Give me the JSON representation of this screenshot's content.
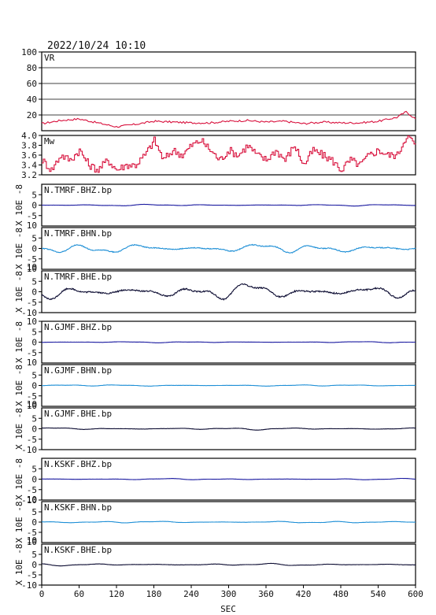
{
  "header": {
    "datetime": "2022/10/24  10:10"
  },
  "xaxis": {
    "label": "SEC",
    "ticks": [
      "0",
      "60",
      "120",
      "180",
      "240",
      "300",
      "360",
      "420",
      "480",
      "540",
      "600"
    ],
    "range": [
      0,
      600
    ]
  },
  "colors": {
    "vr_mw": "#d8103c",
    "dark_blue": "#1a1aa0",
    "light_blue": "#1e8fd6",
    "black_trace": "#0a0a30",
    "frame": "#000000",
    "grid": "#000000"
  },
  "chart_data": [
    {
      "type": "line",
      "label": "VR",
      "ylim": [
        0,
        100
      ],
      "yticks": [
        "100",
        "80",
        "60",
        "40",
        "20"
      ],
      "color": "#d8103c",
      "grid": true,
      "x": [
        0,
        30,
        60,
        90,
        120,
        150,
        180,
        210,
        240,
        270,
        300,
        330,
        360,
        390,
        420,
        450,
        480,
        510,
        540,
        570,
        585,
        600
      ],
      "y": [
        9,
        13,
        15,
        10,
        5,
        8,
        12,
        11,
        10,
        10,
        12,
        13,
        11,
        12,
        9,
        11,
        10,
        10,
        12,
        17,
        24,
        15
      ]
    },
    {
      "type": "line",
      "label": "Mw",
      "ylim": [
        3.2,
        4.0
      ],
      "yticks": [
        "4.0",
        "3.8",
        "3.6",
        "3.4",
        "3.2"
      ],
      "color": "#d8103c",
      "x": [
        0,
        15,
        30,
        45,
        60,
        75,
        90,
        105,
        120,
        135,
        150,
        165,
        180,
        195,
        210,
        225,
        240,
        255,
        270,
        285,
        300,
        315,
        330,
        345,
        360,
        375,
        390,
        405,
        420,
        435,
        450,
        465,
        480,
        495,
        510,
        525,
        540,
        555,
        570,
        585,
        600
      ],
      "y": [
        3.5,
        3.3,
        3.6,
        3.5,
        3.7,
        3.4,
        3.3,
        3.5,
        3.3,
        3.4,
        3.4,
        3.6,
        3.9,
        3.5,
        3.7,
        3.6,
        3.8,
        3.9,
        3.7,
        3.5,
        3.7,
        3.6,
        3.8,
        3.6,
        3.5,
        3.7,
        3.5,
        3.8,
        3.4,
        3.7,
        3.6,
        3.5,
        3.3,
        3.5,
        3.4,
        3.6,
        3.7,
        3.6,
        3.6,
        4.0,
        3.8
      ]
    },
    {
      "type": "line",
      "label": "N.TMRF.BHZ.bp",
      "ylim": [
        -10,
        10
      ],
      "yticks": [
        "5",
        "0",
        "-5"
      ],
      "color": "#1a1aa0",
      "amplitude": 0.4,
      "ylabel": "X 10E -8"
    },
    {
      "type": "line",
      "label": "N.TMRF.BHN.bp",
      "ylim": [
        -10,
        10
      ],
      "yticks": [
        "5",
        "0",
        "-5"
      ],
      "color": "#1e8fd6",
      "amplitude": 2.8,
      "ylabel": "X 10E -8",
      "corner_labels": [
        "10",
        "10"
      ]
    },
    {
      "type": "line",
      "label": "N.TMRF.BHE.bp",
      "ylim": [
        -10,
        10
      ],
      "yticks": [
        "5",
        "0",
        "-5",
        "-10"
      ],
      "color": "#0a0a30",
      "amplitude": 4.5,
      "ylabel": "X 10E -8",
      "corner_labels": [
        "10"
      ]
    },
    {
      "type": "line",
      "label": "N.GJMF.BHZ.bp",
      "ylim": [
        -10,
        10
      ],
      "yticks": [
        "10",
        "5",
        "0",
        "-5"
      ],
      "color": "#1a1aa0",
      "amplitude": 0.3,
      "ylabel": "X 10E -8"
    },
    {
      "type": "line",
      "label": "N.GJMF.BHN.bp",
      "ylim": [
        -10,
        10
      ],
      "yticks": [
        "5",
        "0",
        "-5"
      ],
      "color": "#1e8fd6",
      "amplitude": 0.4,
      "ylabel": "X 10E -8",
      "corner_labels": [
        "10",
        "10"
      ]
    },
    {
      "type": "line",
      "label": "N.GJMF.BHE.bp",
      "ylim": [
        -10,
        10
      ],
      "yticks": [
        "5",
        "0",
        "-5",
        "-10"
      ],
      "color": "#0a0a30",
      "amplitude": 0.6,
      "ylabel": "X 10E -8",
      "corner_labels": [
        "10"
      ]
    },
    {
      "type": "line",
      "label": "N.KSKF.BHZ.bp",
      "ylim": [
        -10,
        10
      ],
      "yticks": [
        "5",
        "0",
        "-5",
        "-10"
      ],
      "color": "#1a1aa0",
      "amplitude": 0.35,
      "ylabel": "X 10E -8"
    },
    {
      "type": "line",
      "label": "N.KSKF.BHN.bp",
      "ylim": [
        -10,
        10
      ],
      "yticks": [
        "5",
        "0",
        "-5"
      ],
      "color": "#1e8fd6",
      "amplitude": 0.5,
      "ylabel": "X 10E -8",
      "corner_labels": [
        "10",
        "10"
      ]
    },
    {
      "type": "line",
      "label": "N.KSKF.BHE.bp",
      "ylim": [
        -10,
        10
      ],
      "yticks": [
        "5",
        "0",
        "-5",
        "-10"
      ],
      "color": "#0a0a30",
      "amplitude": 0.6,
      "ylabel": "X 10E -8",
      "corner_labels": [
        "10"
      ]
    }
  ]
}
